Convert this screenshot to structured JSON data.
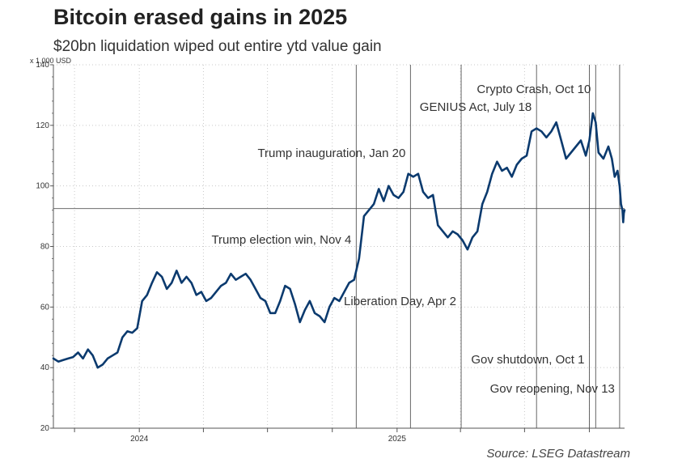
{
  "chart_data": {
    "type": "line",
    "title": "Bitcoin erased gains in 2025",
    "subtitle": "$20bn liquidation wiped out entire ytd value gain",
    "unit_label": "x 1,000 USD",
    "source": "Source: LSEG Datastream",
    "ylim": [
      20,
      140
    ],
    "y_ticks": [
      20,
      40,
      60,
      80,
      100,
      120,
      140
    ],
    "x_range": [
      "2023-09-01",
      "2025-11-20"
    ],
    "x_tick_labels": [
      {
        "label": "2024",
        "date": "2024-01-01"
      },
      {
        "label": "2025",
        "date": "2025-01-01"
      }
    ],
    "reference_line_y": 92.5,
    "grid": true,
    "annotations": [
      {
        "label": "Trump election win, Nov 4",
        "date": "2024-11-04"
      },
      {
        "label": "Trump inauguration, Jan 20",
        "date": "2025-01-20"
      },
      {
        "label": "Liberation Day, Apr 2",
        "date": "2025-04-02"
      },
      {
        "label": "GENIUS Act, July 18",
        "date": "2025-07-18"
      },
      {
        "label": "Gov shutdown, Oct 1",
        "date": "2025-10-01"
      },
      {
        "label": "Crypto Crash, Oct 10",
        "date": "2025-10-10"
      },
      {
        "label": "Gov reopening, Nov 13",
        "date": "2025-11-13"
      }
    ],
    "series": [
      {
        "color": "#0b3a6e",
        "points": [
          [
            "2023-09-01",
            43
          ],
          [
            "2023-09-08",
            42
          ],
          [
            "2023-09-15",
            42.5
          ],
          [
            "2023-09-22",
            43
          ],
          [
            "2023-09-29",
            43.5
          ],
          [
            "2023-10-06",
            45
          ],
          [
            "2023-10-13",
            43
          ],
          [
            "2023-10-20",
            46
          ],
          [
            "2023-10-27",
            44
          ],
          [
            "2023-11-03",
            40
          ],
          [
            "2023-11-10",
            41
          ],
          [
            "2023-11-17",
            43
          ],
          [
            "2023-11-24",
            44
          ],
          [
            "2023-12-01",
            45
          ],
          [
            "2023-12-08",
            50
          ],
          [
            "2023-12-15",
            52
          ],
          [
            "2023-12-22",
            51.5
          ],
          [
            "2023-12-29",
            53
          ],
          [
            "2024-01-05",
            62
          ],
          [
            "2024-01-12",
            64
          ],
          [
            "2024-01-19",
            68
          ],
          [
            "2024-01-26",
            71.5
          ],
          [
            "2024-02-02",
            70
          ],
          [
            "2024-02-09",
            66
          ],
          [
            "2024-02-16",
            68
          ],
          [
            "2024-02-23",
            72
          ],
          [
            "2024-03-01",
            68
          ],
          [
            "2024-03-08",
            70
          ],
          [
            "2024-03-15",
            68
          ],
          [
            "2024-03-22",
            64
          ],
          [
            "2024-03-29",
            65
          ],
          [
            "2024-04-05",
            62
          ],
          [
            "2024-04-12",
            63
          ],
          [
            "2024-04-19",
            65
          ],
          [
            "2024-04-26",
            67
          ],
          [
            "2024-05-03",
            68
          ],
          [
            "2024-05-10",
            71
          ],
          [
            "2024-05-17",
            69
          ],
          [
            "2024-05-24",
            70
          ],
          [
            "2024-05-31",
            71
          ],
          [
            "2024-06-07",
            69
          ],
          [
            "2024-06-14",
            66
          ],
          [
            "2024-06-21",
            63
          ],
          [
            "2024-06-28",
            62
          ],
          [
            "2024-07-05",
            58
          ],
          [
            "2024-07-12",
            58
          ],
          [
            "2024-07-19",
            62
          ],
          [
            "2024-07-26",
            67
          ],
          [
            "2024-08-02",
            66
          ],
          [
            "2024-08-09",
            61
          ],
          [
            "2024-08-16",
            55
          ],
          [
            "2024-08-23",
            59
          ],
          [
            "2024-08-30",
            62
          ],
          [
            "2024-09-06",
            58
          ],
          [
            "2024-09-13",
            57
          ],
          [
            "2024-09-20",
            55
          ],
          [
            "2024-09-27",
            60
          ],
          [
            "2024-10-04",
            63
          ],
          [
            "2024-10-11",
            62
          ],
          [
            "2024-10-18",
            65
          ],
          [
            "2024-10-25",
            68
          ],
          [
            "2024-11-01",
            69
          ],
          [
            "2024-11-08",
            76
          ],
          [
            "2024-11-15",
            90
          ],
          [
            "2024-11-22",
            92
          ],
          [
            "2024-11-29",
            94
          ],
          [
            "2024-12-06",
            99
          ],
          [
            "2024-12-13",
            95
          ],
          [
            "2024-12-20",
            100
          ],
          [
            "2024-12-27",
            97
          ],
          [
            "2025-01-03",
            96
          ],
          [
            "2025-01-10",
            98
          ],
          [
            "2025-01-17",
            104
          ],
          [
            "2025-01-24",
            103
          ],
          [
            "2025-01-31",
            104
          ],
          [
            "2025-02-07",
            98
          ],
          [
            "2025-02-14",
            96
          ],
          [
            "2025-02-21",
            97
          ],
          [
            "2025-02-28",
            87
          ],
          [
            "2025-03-07",
            85
          ],
          [
            "2025-03-14",
            83
          ],
          [
            "2025-03-21",
            85
          ],
          [
            "2025-03-28",
            84
          ],
          [
            "2025-04-04",
            82
          ],
          [
            "2025-04-11",
            79
          ],
          [
            "2025-04-18",
            83
          ],
          [
            "2025-04-25",
            85
          ],
          [
            "2025-05-02",
            94
          ],
          [
            "2025-05-09",
            98
          ],
          [
            "2025-05-16",
            104
          ],
          [
            "2025-05-23",
            108
          ],
          [
            "2025-05-30",
            105
          ],
          [
            "2025-06-06",
            106
          ],
          [
            "2025-06-13",
            103
          ],
          [
            "2025-06-20",
            107
          ],
          [
            "2025-06-27",
            109
          ],
          [
            "2025-07-04",
            110
          ],
          [
            "2025-07-11",
            118
          ],
          [
            "2025-07-18",
            119
          ],
          [
            "2025-07-25",
            118
          ],
          [
            "2025-08-01",
            116
          ],
          [
            "2025-08-08",
            118
          ],
          [
            "2025-08-15",
            121
          ],
          [
            "2025-08-22",
            115
          ],
          [
            "2025-08-29",
            109
          ],
          [
            "2025-09-05",
            111
          ],
          [
            "2025-09-12",
            113
          ],
          [
            "2025-09-19",
            115
          ],
          [
            "2025-09-26",
            110
          ],
          [
            "2025-10-01",
            115
          ],
          [
            "2025-10-06",
            124
          ],
          [
            "2025-10-10",
            121
          ],
          [
            "2025-10-14",
            111
          ],
          [
            "2025-10-21",
            109
          ],
          [
            "2025-10-28",
            113
          ],
          [
            "2025-11-02",
            109
          ],
          [
            "2025-11-06",
            103
          ],
          [
            "2025-11-10",
            105
          ],
          [
            "2025-11-13",
            100
          ],
          [
            "2025-11-15",
            94
          ],
          [
            "2025-11-17",
            92
          ],
          [
            "2025-11-18",
            88
          ],
          [
            "2025-11-19",
            91
          ],
          [
            "2025-11-20",
            92
          ]
        ]
      }
    ]
  }
}
